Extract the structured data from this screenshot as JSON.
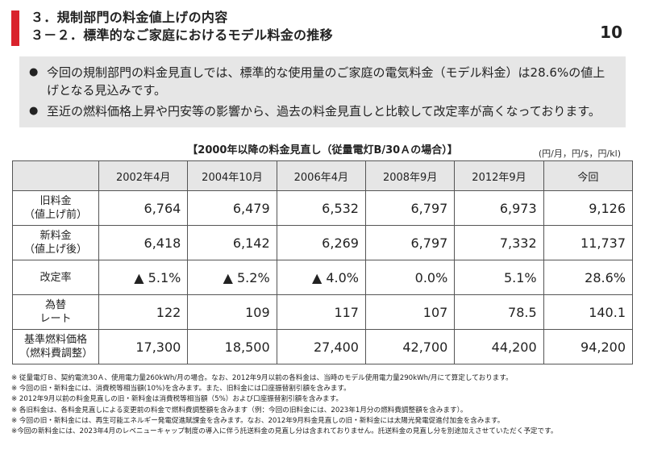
{
  "header": {
    "title_line1": "３．規制部門の料金値上げの内容",
    "title_line2": "３－２．標準的なご家庭におけるモデル料金の推移",
    "page_number": "10",
    "accent_color": "#d9232d"
  },
  "summary": {
    "bullets": [
      "今回の規制部門の料金見直しでは、標準的な使用量のご家庭の電気料金（モデル料金）は28.6%の値上げとなる見込みです。",
      "至近の燃料価格上昇や円安等の影響から、過去の料金見直しと比較して改定率が高くなっております。"
    ]
  },
  "table": {
    "title": "【2000年以降の料金見直し（従量電灯B/30Ａの場合）】",
    "units": "(円/月，円/$，円/kl)",
    "columns": [
      "2002年4月",
      "2004年10月",
      "2006年4月",
      "2008年9月",
      "2012年9月",
      "今回"
    ],
    "rows": [
      {
        "label_line1": "旧料金",
        "label_line2": "（値上げ前）",
        "values": [
          "6,764",
          "6,479",
          "6,532",
          "6,797",
          "6,973",
          "9,126"
        ]
      },
      {
        "label_line1": "新料金",
        "label_line2": "（値上げ後）",
        "values": [
          "6,418",
          "6,142",
          "6,269",
          "6,797",
          "7,332",
          "11,737"
        ]
      },
      {
        "label_line1": "改定率",
        "label_line2": "",
        "values": [
          "▲ 5.1%",
          "▲ 5.2%",
          "▲ 4.0%",
          "0.0%",
          "5.1%",
          "28.6%"
        ]
      },
      {
        "label_line1": "為替",
        "label_line2": "レート",
        "values": [
          "122",
          "109",
          "117",
          "107",
          "78.5",
          "140.1"
        ]
      },
      {
        "label_line1": "基準燃料価格",
        "label_line2": "（燃料費調整）",
        "values": [
          "17,300",
          "18,500",
          "27,400",
          "42,700",
          "44,200",
          "94,200"
        ]
      }
    ]
  },
  "notes": [
    "※ 従量電灯Ｂ、契約電流30Ａ、使用電力量260kWh/月の場合。なお、2012年9月以前の各料金は、当時のモデル使用電力量290kWh/月にて算定しております。",
    "※ 今回の旧・新料金には、消費税等相当額(10%)を含みます。また、旧料金には口座振替割引額を含みます。",
    "※ 2012年9月以前の料金見直しの旧・新料金は消費税等相当額（5%）および口座振替割引額を含みます。",
    "※ 各旧料金は、各料金見直しによる変更前の料金で燃料費調整額を含みます（例：今回の旧料金には、2023年1月分の燃料費調整額を含みます）。",
    "※ 今回の旧・新料金には、再生可能エネルギー発電促進賦課金を含みます。なお、2012年9月料金見直しの旧・新料金には太陽光発電促進付加金を含みます。",
    "※今回の新料金には、2023年4月のレベニューキャップ制度の導入に伴う託送料金の見直し分は含まれておりません。託送料金の見直し分を別途加えさせていただく予定です。"
  ]
}
